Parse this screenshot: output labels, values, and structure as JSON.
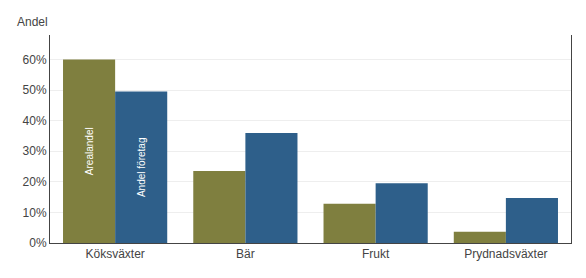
{
  "chart_data": {
    "type": "bar",
    "ylabel": "Andel",
    "categories": [
      "Köksväxter",
      "Bär",
      "Frukt",
      "Prydnadsväxter"
    ],
    "series": [
      {
        "name": "Arealandel",
        "color": "#7f7f3f",
        "values": [
          0.6,
          0.235,
          0.128,
          0.037
        ]
      },
      {
        "name": "Andel företag",
        "color": "#2e5f8a",
        "values": [
          0.495,
          0.36,
          0.195,
          0.147
        ]
      }
    ],
    "ylim": [
      0,
      0.68
    ],
    "yticks": [
      {
        "value": 0.0,
        "label": "0%"
      },
      {
        "value": 0.1,
        "label": "10%"
      },
      {
        "value": 0.2,
        "label": "20%"
      },
      {
        "value": 0.3,
        "label": "30%"
      },
      {
        "value": 0.4,
        "label": "40%"
      },
      {
        "value": 0.5,
        "label": "50%"
      },
      {
        "value": 0.6,
        "label": "60%"
      }
    ],
    "grid": true
  }
}
